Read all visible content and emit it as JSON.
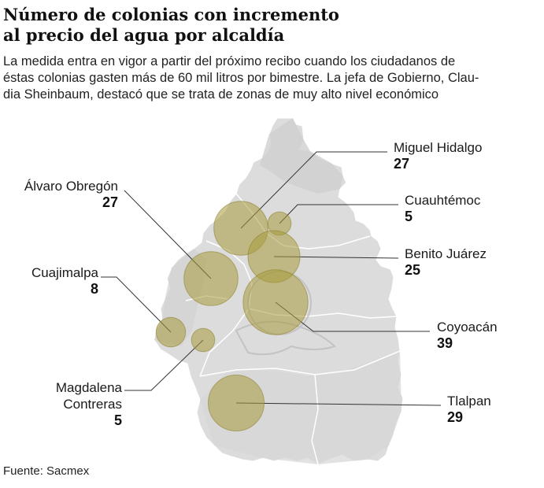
{
  "title_lines": [
    "Número de colonias con incremento",
    "al precio del agua por alcaldía"
  ],
  "subtitle_lines": [
    "La medida entra en vigor a partir del próximo recibo cuando los ciudadanos de",
    "éstas colonias gasten más de 60 mil litros por bimestre. La jefa de Gobierno, Clau-",
    "dia Sheinbaum, destacó que se trata de zonas de muy alto nivel económico"
  ],
  "source": "Fuente: Sacmex",
  "colors": {
    "bubble_fill": "#a89a3c",
    "bubble_stroke": "#8f8430",
    "map_fill": "#dcdcdc",
    "map_dark": "#cfcfcf",
    "leader": "#333333"
  },
  "chart_data": {
    "type": "bubble-map",
    "title": "Número de colonias con incremento al precio del agua por alcaldía",
    "series": [
      {
        "name": "Miguel Hidalgo",
        "value": 27
      },
      {
        "name": "Cuauhtémoc",
        "value": 5
      },
      {
        "name": "Benito Juárez",
        "value": 25
      },
      {
        "name": "Coyoacán",
        "value": 39
      },
      {
        "name": "Tlalpan",
        "value": 29
      },
      {
        "name": "Álvaro Obregón",
        "value": 27
      },
      {
        "name": "Cuajimalpa",
        "value": 8
      },
      {
        "name": "Magdalena",
        "name_line2": "Contreras",
        "value": 5
      }
    ]
  }
}
